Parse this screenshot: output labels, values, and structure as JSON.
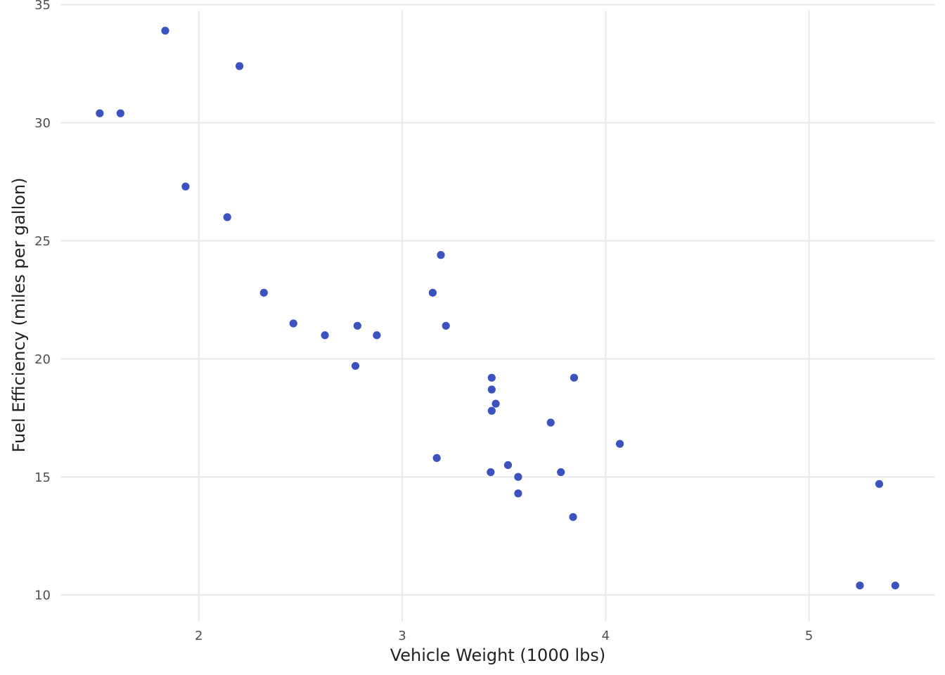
{
  "chart_data": {
    "type": "scatter",
    "title": "",
    "xlabel": "Vehicle Weight (1000 lbs)",
    "ylabel": "Fuel Efficiency (miles per gallon)",
    "xlim": [
      1.32,
      5.62
    ],
    "ylim": [
      9.23,
      35.08
    ],
    "xticks": [
      2,
      3,
      4,
      5
    ],
    "yticks": [
      10,
      15,
      20,
      25,
      30,
      35
    ],
    "xtick_labels": [
      "2",
      "3",
      "4",
      "5"
    ],
    "ytick_labels": [
      "10",
      "15",
      "20",
      "25",
      "30",
      "35"
    ],
    "grid": true,
    "legend": "none",
    "point_color": "#3a53bf",
    "series": [
      {
        "points": [
          {
            "x": 2.62,
            "y": 21.0
          },
          {
            "x": 2.875,
            "y": 21.0
          },
          {
            "x": 2.32,
            "y": 22.8
          },
          {
            "x": 3.215,
            "y": 21.4
          },
          {
            "x": 3.44,
            "y": 18.7
          },
          {
            "x": 3.46,
            "y": 18.1
          },
          {
            "x": 3.57,
            "y": 14.3
          },
          {
            "x": 3.19,
            "y": 24.4
          },
          {
            "x": 3.15,
            "y": 22.8
          },
          {
            "x": 3.44,
            "y": 19.2
          },
          {
            "x": 3.44,
            "y": 17.8
          },
          {
            "x": 4.07,
            "y": 16.4
          },
          {
            "x": 3.73,
            "y": 17.3
          },
          {
            "x": 3.78,
            "y": 15.2
          },
          {
            "x": 5.25,
            "y": 10.4
          },
          {
            "x": 5.424,
            "y": 10.4
          },
          {
            "x": 5.345,
            "y": 14.7
          },
          {
            "x": 2.2,
            "y": 32.4
          },
          {
            "x": 1.615,
            "y": 30.4
          },
          {
            "x": 1.835,
            "y": 33.9
          },
          {
            "x": 2.465,
            "y": 21.5
          },
          {
            "x": 3.52,
            "y": 15.5
          },
          {
            "x": 3.435,
            "y": 15.2
          },
          {
            "x": 3.84,
            "y": 13.3
          },
          {
            "x": 3.845,
            "y": 19.2
          },
          {
            "x": 1.935,
            "y": 27.3
          },
          {
            "x": 2.14,
            "y": 26.0
          },
          {
            "x": 1.513,
            "y": 30.4
          },
          {
            "x": 3.17,
            "y": 15.8
          },
          {
            "x": 2.77,
            "y": 19.7
          },
          {
            "x": 3.57,
            "y": 15.0
          },
          {
            "x": 2.78,
            "y": 21.4
          }
        ]
      }
    ]
  }
}
